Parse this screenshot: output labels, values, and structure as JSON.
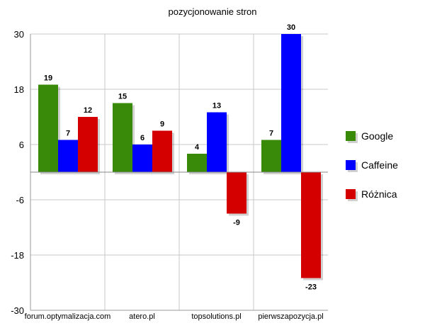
{
  "chart_data": {
    "type": "bar",
    "title": "pozycjonowanie stron",
    "categories": [
      "forum.optymalizacja.com",
      "atero.pl",
      "topsolutions.pl",
      "pierwszapozycja.pl"
    ],
    "series": [
      {
        "name": "Google",
        "values": [
          19,
          15,
          4,
          7
        ],
        "color": "#3a8a0a"
      },
      {
        "name": "Caffeine",
        "values": [
          7,
          6,
          13,
          30
        ],
        "color": "#0000ff"
      },
      {
        "name": "Różnica",
        "values": [
          12,
          9,
          -9,
          -23
        ],
        "color": "#d40000"
      }
    ],
    "ylim": [
      -30,
      30
    ],
    "yticks": [
      30,
      18,
      6,
      -6,
      -18,
      -30
    ],
    "grid": true,
    "legend_position": "right"
  }
}
